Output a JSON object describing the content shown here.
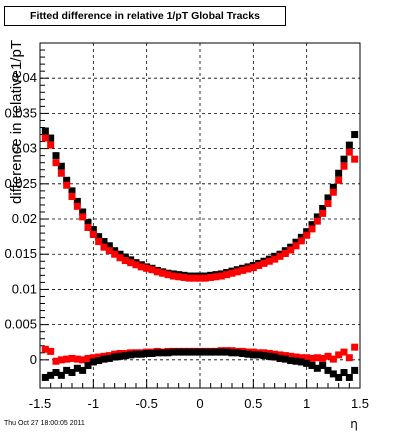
{
  "chart_data": {
    "type": "scatter",
    "title": "Fitted difference in relative 1/pT  Global Tracks",
    "xlabel": "η",
    "ylabel": "difference in relative1/pT",
    "xlim": [
      -1.5,
      1.5
    ],
    "ylim": [
      -0.004,
      0.045
    ],
    "x_ticks": [
      "-1.5",
      "-1",
      "-0.5",
      "0",
      "0.5",
      "1",
      "1.5"
    ],
    "y_ticks": [
      "0",
      "0.005",
      "0.01",
      "0.015",
      "0.02",
      "0.025",
      "0.03",
      "0.035",
      "0.04"
    ],
    "grid": true,
    "marker": "square",
    "series_colors": [
      "#000000",
      "#ff0000",
      "#ff0000",
      "#000000"
    ],
    "series": [
      {
        "x": [
          -1.45,
          -1.4,
          -1.35,
          -1.3,
          -1.25,
          -1.2,
          -1.15,
          -1.1,
          -1.05,
          -1.0,
          -0.95,
          -0.9,
          -0.85,
          -0.8,
          -0.75,
          -0.7,
          -0.65,
          -0.6,
          -0.55,
          -0.5,
          -0.45,
          -0.4,
          -0.35,
          -0.3,
          -0.25,
          -0.2,
          -0.15,
          -0.1,
          -0.05,
          0.0,
          0.05,
          0.1,
          0.15,
          0.2,
          0.25,
          0.3,
          0.35,
          0.4,
          0.45,
          0.5,
          0.55,
          0.6,
          0.65,
          0.7,
          0.75,
          0.8,
          0.85,
          0.9,
          0.95,
          1.0,
          1.05,
          1.1,
          1.15,
          1.2,
          1.25,
          1.3,
          1.35,
          1.4,
          1.45
        ],
        "values": [
          0.0325,
          0.0315,
          0.029,
          0.0275,
          0.0255,
          0.024,
          0.0225,
          0.021,
          0.0195,
          0.0185,
          0.0175,
          0.0168,
          0.0162,
          0.0155,
          0.015,
          0.0146,
          0.0142,
          0.0138,
          0.0135,
          0.0132,
          0.013,
          0.0127,
          0.0125,
          0.0123,
          0.0122,
          0.0121,
          0.012,
          0.0119,
          0.0119,
          0.0119,
          0.0119,
          0.012,
          0.0121,
          0.0122,
          0.0124,
          0.0126,
          0.0128,
          0.013,
          0.0132,
          0.0134,
          0.0137,
          0.014,
          0.0143,
          0.0147,
          0.015,
          0.0155,
          0.016,
          0.0167,
          0.0174,
          0.0182,
          0.0192,
          0.0203,
          0.0215,
          0.023,
          0.0245,
          0.0265,
          0.0285,
          0.0305,
          0.032
        ]
      },
      {
        "x": [
          -1.45,
          -1.4,
          -1.35,
          -1.3,
          -1.25,
          -1.2,
          -1.15,
          -1.1,
          -1.05,
          -1.0,
          -0.95,
          -0.9,
          -0.85,
          -0.8,
          -0.75,
          -0.7,
          -0.65,
          -0.6,
          -0.55,
          -0.5,
          -0.45,
          -0.4,
          -0.35,
          -0.3,
          -0.25,
          -0.2,
          -0.15,
          -0.1,
          -0.05,
          0.0,
          0.05,
          0.1,
          0.15,
          0.2,
          0.25,
          0.3,
          0.35,
          0.4,
          0.45,
          0.5,
          0.55,
          0.6,
          0.65,
          0.7,
          0.75,
          0.8,
          0.85,
          0.9,
          0.95,
          1.0,
          1.05,
          1.1,
          1.15,
          1.2,
          1.25,
          1.3,
          1.35,
          1.4,
          1.45
        ],
        "values": [
          0.0315,
          0.0305,
          0.028,
          0.0265,
          0.0248,
          0.0232,
          0.0218,
          0.0203,
          0.0188,
          0.0178,
          0.0168,
          0.016,
          0.0155,
          0.015,
          0.0145,
          0.0141,
          0.0138,
          0.0135,
          0.0132,
          0.013,
          0.0128,
          0.0125,
          0.0123,
          0.0121,
          0.0119,
          0.0118,
          0.0117,
          0.0116,
          0.0116,
          0.0116,
          0.0116,
          0.0117,
          0.0118,
          0.0119,
          0.0121,
          0.0123,
          0.0125,
          0.0127,
          0.0129,
          0.0131,
          0.0134,
          0.0137,
          0.014,
          0.0143,
          0.0147,
          0.0151,
          0.0156,
          0.0162,
          0.0169,
          0.0177,
          0.0186,
          0.0197,
          0.0208,
          0.0222,
          0.0238,
          0.0255,
          0.0275,
          0.0295,
          0.0285
        ]
      },
      {
        "x": [
          -1.45,
          -1.4,
          -1.35,
          -1.3,
          -1.25,
          -1.2,
          -1.15,
          -1.1,
          -1.05,
          -1.0,
          -0.95,
          -0.9,
          -0.85,
          -0.8,
          -0.75,
          -0.7,
          -0.65,
          -0.6,
          -0.55,
          -0.5,
          -0.45,
          -0.4,
          -0.35,
          -0.3,
          -0.25,
          -0.2,
          -0.15,
          -0.1,
          -0.05,
          0.0,
          0.05,
          0.1,
          0.15,
          0.2,
          0.25,
          0.3,
          0.35,
          0.4,
          0.45,
          0.5,
          0.55,
          0.6,
          0.65,
          0.7,
          0.75,
          0.8,
          0.85,
          0.9,
          0.95,
          1.0,
          1.05,
          1.1,
          1.15,
          1.2,
          1.25,
          1.3,
          1.35,
          1.4,
          1.45
        ],
        "values": [
          0.0015,
          0.0012,
          -0.0002,
          0.0,
          0.0001,
          0.0002,
          0.0001,
          0.0,
          0.0002,
          0.0003,
          0.0004,
          0.0005,
          0.0006,
          0.0008,
          0.0009,
          0.0009,
          0.001,
          0.001,
          0.001,
          0.0011,
          0.0011,
          0.0012,
          0.0011,
          0.0012,
          0.0012,
          0.0012,
          0.0012,
          0.0012,
          0.0012,
          0.0012,
          0.0012,
          0.0012,
          0.0012,
          0.0013,
          0.0013,
          0.0013,
          0.0012,
          0.0012,
          0.0011,
          0.0011,
          0.001,
          0.001,
          0.0009,
          0.0008,
          0.0007,
          0.0006,
          0.0005,
          0.0004,
          0.0003,
          0.0003,
          0.0002,
          0.0003,
          0.0002,
          0.0005,
          0.0001,
          0.0007,
          0.0011,
          0.0003,
          0.0018
        ]
      },
      {
        "x": [
          -1.45,
          -1.4,
          -1.35,
          -1.3,
          -1.25,
          -1.2,
          -1.15,
          -1.1,
          -1.05,
          -1.0,
          -0.95,
          -0.9,
          -0.85,
          -0.8,
          -0.75,
          -0.7,
          -0.65,
          -0.6,
          -0.55,
          -0.5,
          -0.45,
          -0.4,
          -0.35,
          -0.3,
          -0.25,
          -0.2,
          -0.15,
          -0.1,
          -0.05,
          0.0,
          0.05,
          0.1,
          0.15,
          0.2,
          0.25,
          0.3,
          0.35,
          0.4,
          0.45,
          0.5,
          0.55,
          0.6,
          0.65,
          0.7,
          0.75,
          0.8,
          0.85,
          0.9,
          0.95,
          1.0,
          1.05,
          1.1,
          1.15,
          1.2,
          1.25,
          1.3,
          1.35,
          1.4,
          1.45
        ],
        "values": [
          -0.0025,
          -0.0022,
          -0.0018,
          -0.0022,
          -0.0015,
          -0.0018,
          -0.0012,
          -0.0015,
          -0.0008,
          -0.0003,
          -0.0001,
          0.0001,
          0.0002,
          0.0004,
          0.0005,
          0.0006,
          0.0007,
          0.0008,
          0.0008,
          0.0009,
          0.0009,
          0.001,
          0.001,
          0.001,
          0.0011,
          0.0011,
          0.0011,
          0.0011,
          0.0011,
          0.0011,
          0.0011,
          0.0011,
          0.0011,
          0.0011,
          0.0011,
          0.001,
          0.001,
          0.0009,
          0.0008,
          0.0007,
          0.0007,
          0.0006,
          0.0005,
          0.0004,
          0.0002,
          0.0001,
          -0.0001,
          -0.0002,
          -0.0003,
          -0.0005,
          -0.0008,
          -0.0012,
          -0.0008,
          -0.0015,
          -0.002,
          -0.0025,
          -0.0018,
          -0.0025,
          -0.0015
        ]
      }
    ]
  },
  "footer": {
    "datestamp": "Thu Oct 27 18:00:05 2011"
  }
}
